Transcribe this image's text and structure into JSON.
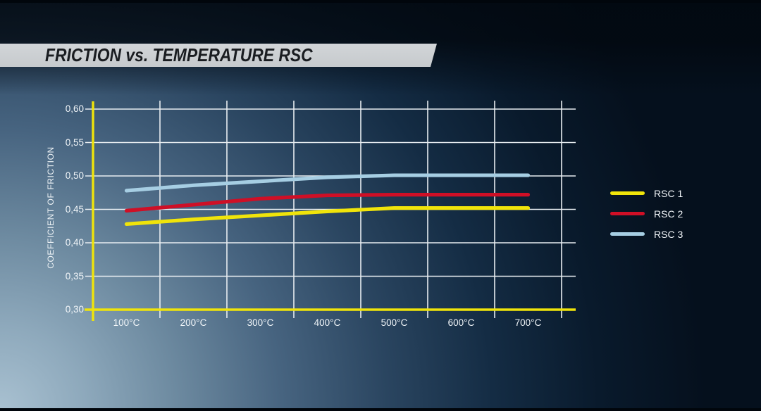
{
  "chart_data": {
    "type": "line",
    "title": "FRICTION vs. TEMPERATURE RSC",
    "xlabel": "",
    "ylabel": "COEFFICIENT OF FRICTION",
    "x_unit": "°C",
    "categories": [
      100,
      200,
      300,
      400,
      500,
      600,
      700
    ],
    "x_tick_labels": [
      "100°C",
      "200°C",
      "300°C",
      "400°C",
      "500°C",
      "600°C",
      "700°C"
    ],
    "y_tick_labels": [
      "0,60",
      "0,55",
      "0,50",
      "0,45",
      "0,40",
      "0,35",
      "0,30"
    ],
    "y_tick_values": [
      0.6,
      0.55,
      0.5,
      0.45,
      0.4,
      0.35,
      0.3
    ],
    "ylim": [
      0.3,
      0.6
    ],
    "y_step": 0.05,
    "grid": true,
    "legend_position": "right",
    "series": [
      {
        "name": "RSC 1",
        "color": "#f0e40a",
        "values": [
          0.428,
          0.435,
          0.441,
          0.447,
          0.452,
          0.452,
          0.452
        ]
      },
      {
        "name": "RSC 2",
        "color": "#cf0f26",
        "values": [
          0.448,
          0.457,
          0.466,
          0.471,
          0.472,
          0.472,
          0.472
        ]
      },
      {
        "name": "RSC 3",
        "color": "#a6cee3",
        "values": [
          0.478,
          0.486,
          0.492,
          0.498,
          0.501,
          0.501,
          0.501
        ]
      }
    ],
    "axis_color": "#f0e40a",
    "gridline_color": "#e8edf1",
    "tick_label_color": "#f2f6f9",
    "banner_color": "#cdd1d4"
  }
}
